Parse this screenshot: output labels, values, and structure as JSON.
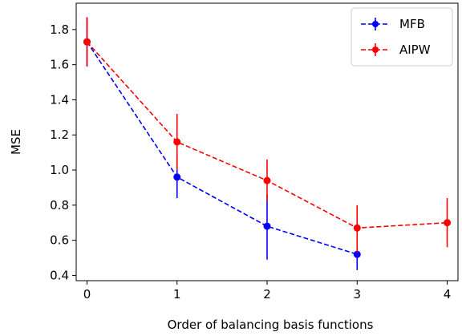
{
  "chart_data": {
    "type": "line",
    "xlabel": "Order of balancing basis functions",
    "ylabel": "MSE",
    "xlim": [
      -0.12,
      4.12
    ],
    "ylim": [
      0.37,
      1.95
    ],
    "xticks": [
      0,
      1,
      2,
      3,
      4
    ],
    "yticks": [
      0.4,
      0.6,
      0.8,
      1.0,
      1.2,
      1.4,
      1.6,
      1.8
    ],
    "xtick_labels": [
      "0",
      "1",
      "2",
      "3",
      "4"
    ],
    "ytick_labels": [
      "0.4",
      "0.6",
      "0.8",
      "1.0",
      "1.2",
      "1.4",
      "1.6",
      "1.8"
    ],
    "grid": false,
    "legend_position": "top-right",
    "series": [
      {
        "name": "MFB",
        "color": "#0000ff",
        "linestyle": "dashed",
        "x": [
          0,
          1,
          2,
          3
        ],
        "y": [
          1.73,
          0.96,
          0.68,
          0.52
        ],
        "yerr_low": [
          1.59,
          0.84,
          0.49,
          0.43
        ],
        "yerr_high": [
          1.87,
          1.09,
          0.86,
          0.57
        ]
      },
      {
        "name": "AIPW",
        "color": "#ff0000",
        "linestyle": "dashed",
        "x": [
          0,
          1,
          2,
          3,
          4
        ],
        "y": [
          1.73,
          1.16,
          0.94,
          0.67,
          0.7
        ],
        "yerr_low": [
          1.59,
          1.0,
          0.82,
          0.53,
          0.56
        ],
        "yerr_high": [
          1.87,
          1.32,
          1.06,
          0.8,
          0.84
        ]
      }
    ]
  }
}
